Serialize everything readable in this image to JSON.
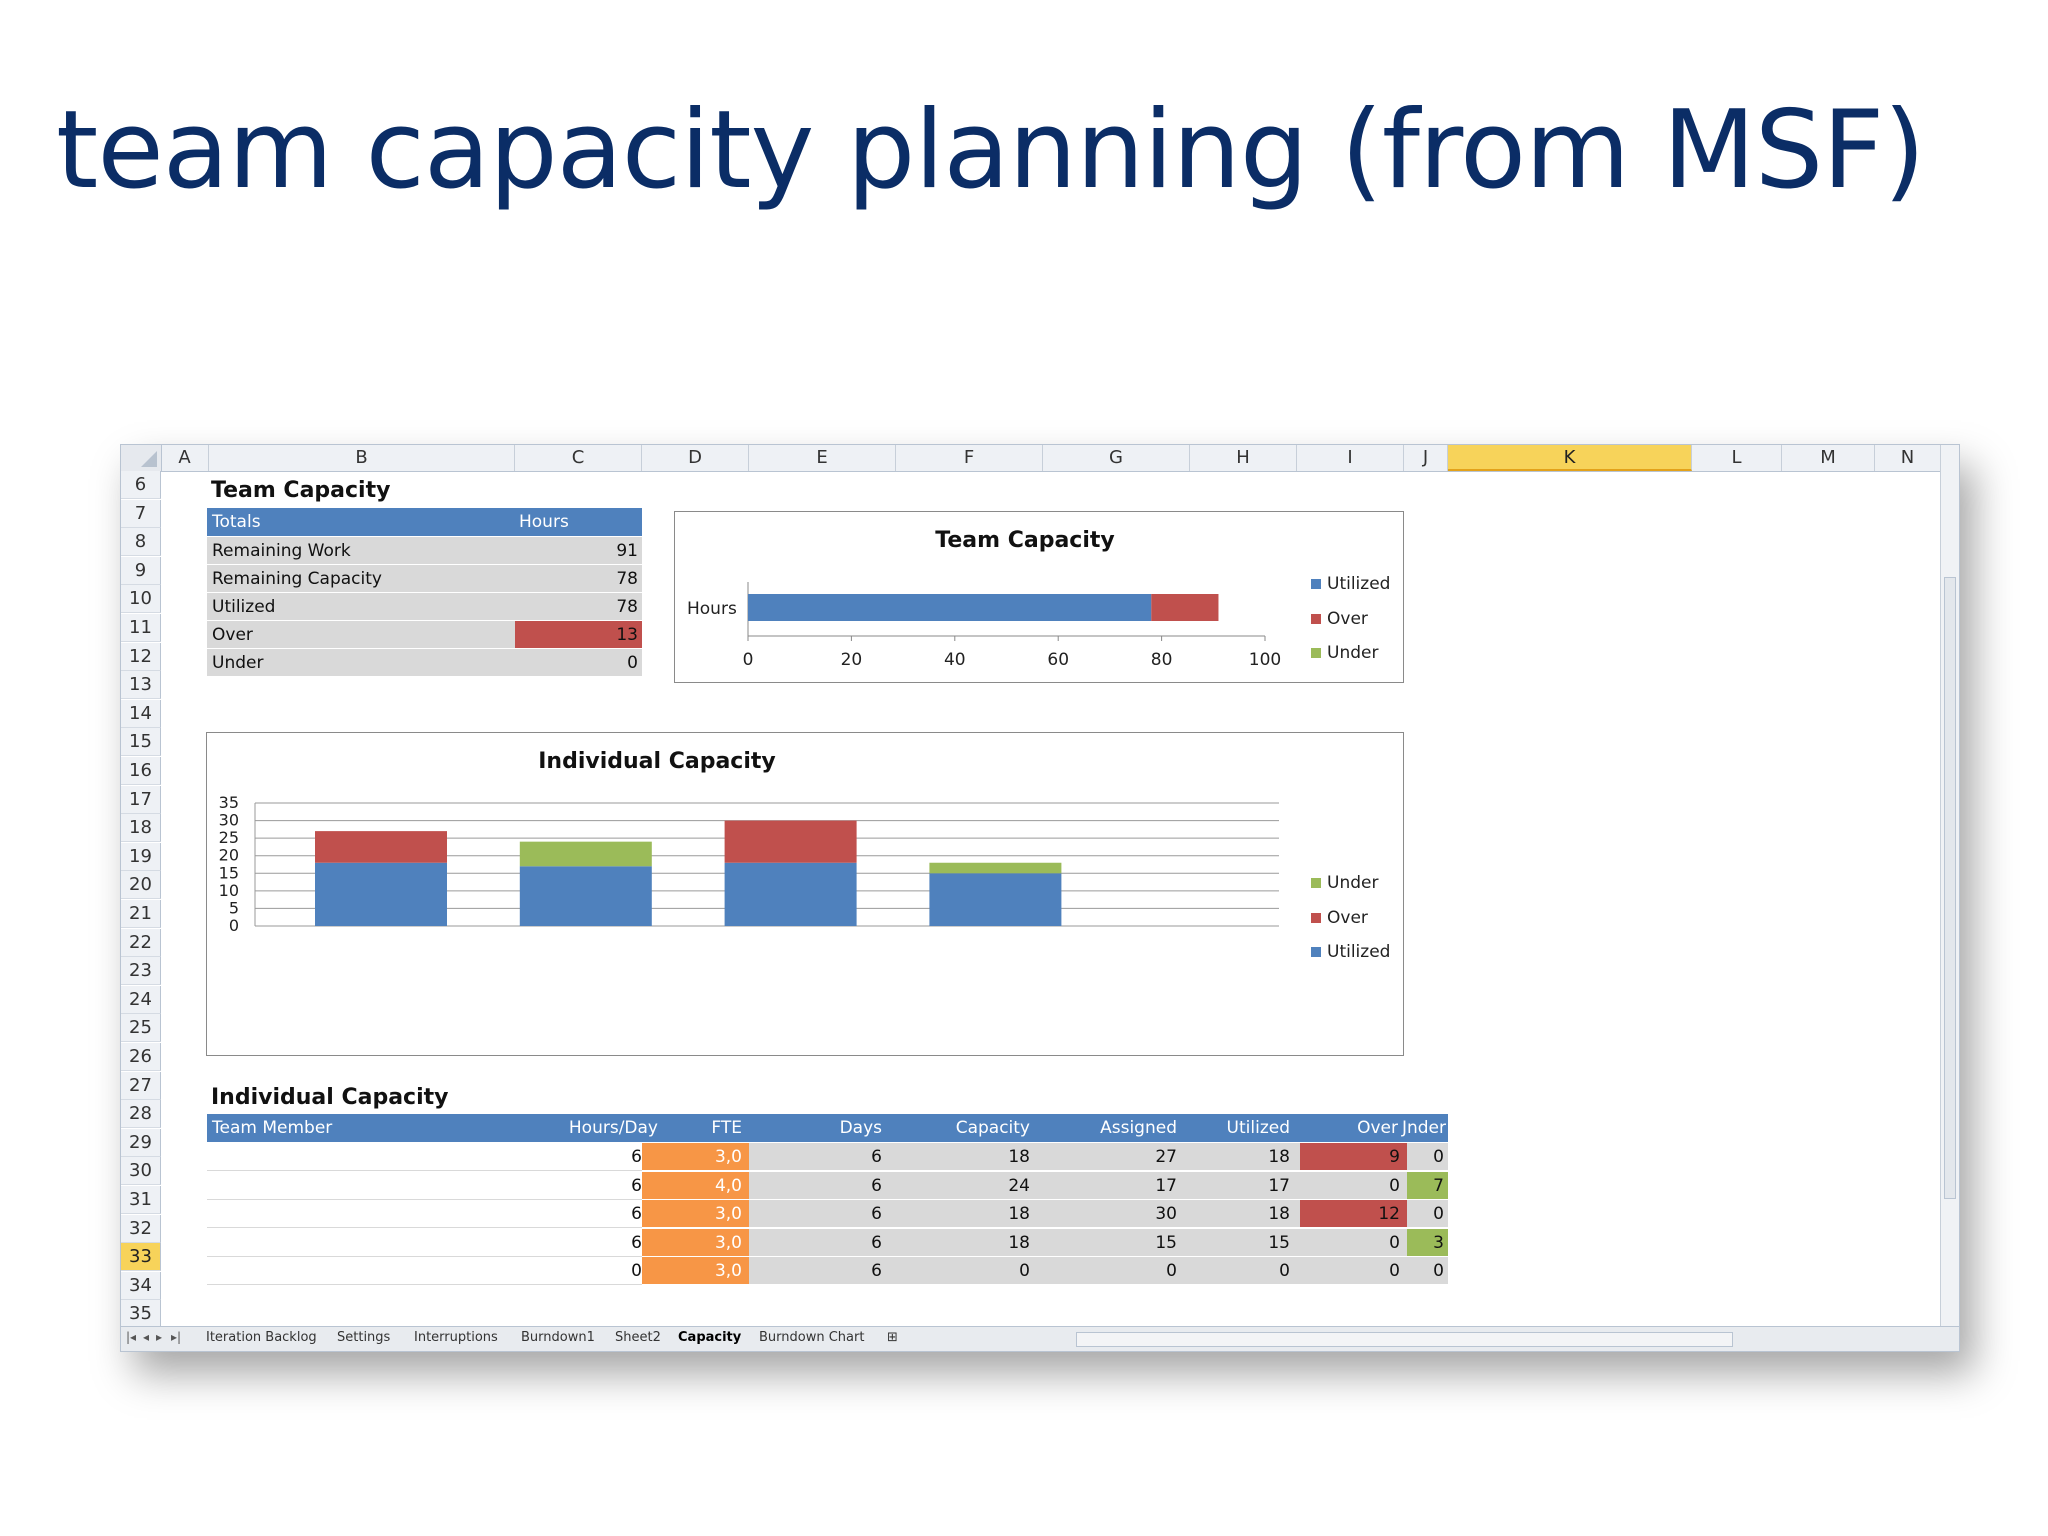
{
  "slide": {
    "title": "team capacity planning (from MSF)"
  },
  "sheet": {
    "columns": [
      "A",
      "B",
      "C",
      "D",
      "E",
      "F",
      "G",
      "H",
      "I",
      "J",
      "K",
      "L",
      "M",
      "N"
    ],
    "active_column": "K",
    "rows": [
      "6",
      "7",
      "8",
      "9",
      "10",
      "11",
      "12",
      "13",
      "14",
      "15",
      "16",
      "17",
      "18",
      "19",
      "20",
      "21",
      "22",
      "23",
      "24",
      "25",
      "26",
      "27",
      "28",
      "29",
      "30",
      "31",
      "32",
      "33",
      "34",
      "35"
    ],
    "active_row": "33"
  },
  "team_capacity_table": {
    "title": "Team Capacity",
    "header": {
      "label": "Totals",
      "value": "Hours"
    },
    "rows": [
      {
        "label": "Remaining Work",
        "value": "91"
      },
      {
        "label": "Remaining Capacity",
        "value": "78"
      },
      {
        "label": "Utilized",
        "value": "78"
      },
      {
        "label": "Over",
        "value": "13"
      },
      {
        "label": "Under",
        "value": "0"
      }
    ]
  },
  "team_chart": {
    "title": "Team Capacity",
    "category": "Hours",
    "ticks": [
      "0",
      "20",
      "40",
      "60",
      "80",
      "100"
    ],
    "xlim": [
      0,
      100
    ],
    "utilized": 78,
    "over": 13,
    "under": 0,
    "legend": [
      "Utilized",
      "Over",
      "Under"
    ]
  },
  "individual_chart": {
    "title": "Individual Capacity",
    "y_ticks": [
      "35",
      "30",
      "25",
      "20",
      "15",
      "10",
      "5",
      "0"
    ],
    "ylim": [
      0,
      35
    ],
    "bars": [
      {
        "utilized": 18,
        "over": 9,
        "under": 0
      },
      {
        "utilized": 17,
        "over": 0,
        "under": 7
      },
      {
        "utilized": 18,
        "over": 12,
        "under": 0
      },
      {
        "utilized": 15,
        "over": 0,
        "under": 3
      }
    ],
    "legend": [
      "Under",
      "Over",
      "Utilized"
    ]
  },
  "individual_table": {
    "title": "Individual Capacity",
    "headers": [
      "Team Member",
      "Hours/Day",
      "FTE",
      "Days",
      "Capacity",
      "Assigned",
      "Utilized",
      "Over",
      "Jnder"
    ],
    "rows": [
      [
        "",
        "6",
        "3,0",
        "6",
        "18",
        "27",
        "18",
        "9",
        "0"
      ],
      [
        "",
        "6",
        "4,0",
        "6",
        "24",
        "17",
        "17",
        "0",
        "7"
      ],
      [
        "",
        "6",
        "3,0",
        "6",
        "18",
        "30",
        "18",
        "12",
        "0"
      ],
      [
        "",
        "6",
        "3,0",
        "6",
        "18",
        "15",
        "15",
        "0",
        "3"
      ],
      [
        "",
        "0",
        "3,0",
        "6",
        "0",
        "0",
        "0",
        "0",
        "0"
      ]
    ]
  },
  "sheet_tabs": [
    "Iteration Backlog",
    "Settings",
    "Interruptions",
    "Burndown1",
    "Sheet2",
    "Capacity",
    "Burndown Chart"
  ],
  "active_tab": "Capacity",
  "colors": {
    "blue": "#4f81bd",
    "red": "#c0504d",
    "green": "#9bbb59",
    "orange": "#f79646"
  }
}
